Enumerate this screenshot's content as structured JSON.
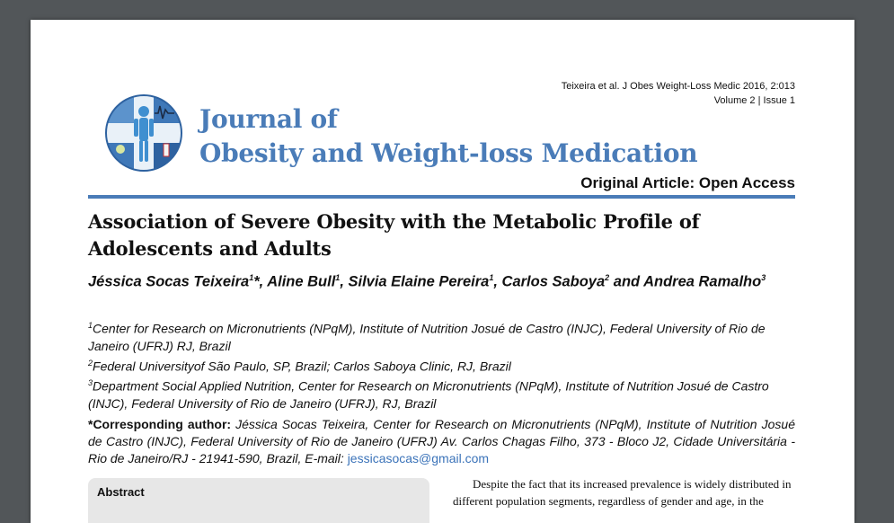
{
  "header": {
    "citation": "Teixeira et al. J Obes Weight-Loss Medic 2016, 2:013",
    "volume_issue": "Volume 2 | Issue 1"
  },
  "journal": {
    "title_line1": "Journal of",
    "title_line2": "Obesity and Weight-loss Medication"
  },
  "article_type": "Original Article: Open Access",
  "article": {
    "title": "Association of Severe Obesity with the Metabolic Profile of Adolescents and Adults",
    "authors": [
      {
        "name": "Jéssica Socas Teixeira",
        "sup": "1",
        "sep": "*, "
      },
      {
        "name": "Aline Bull",
        "sup": "1",
        "sep": ", "
      },
      {
        "name": "Silvia Elaine Pereira",
        "sup": "1",
        "sep": ", "
      },
      {
        "name": "Carlos Saboya",
        "sup": "2",
        "sep": " and "
      },
      {
        "name": "Andrea Ramalho",
        "sup": "3",
        "sep": ""
      }
    ],
    "affiliations": [
      {
        "sup": "1",
        "text": "Center for Research on Micronutrients (NPqM), Institute of Nutrition Josué de Castro (INJC), Federal University of Rio de Janeiro (UFRJ) RJ, Brazil"
      },
      {
        "sup": "2",
        "text": "Federal Universityof São Paulo, SP, Brazil; Carlos Saboya Clinic, RJ, Brazil"
      },
      {
        "sup": "3",
        "text": "Department Social Applied Nutrition, Center for Research on Micronutrients (NPqM), Institute of Nutrition Josué de Castro (INJC), Federal University of Rio de Janeiro (UFRJ), RJ, Brazil"
      }
    ],
    "corresponding": {
      "label": "*Corresponding author:",
      "text": " Jéssica Socas Teixeira, Center for Research on Micronutrients (NPqM), Institute of Nutrition Josué de Castro (INJC), Federal University of Rio de Janeiro (UFRJ) Av. Carlos Chagas Filho, 373 - Bloco J2, Cidade Universitária - Rio de Janeiro/RJ - 21941-590, Brazil, E-mail: ",
      "email": "jessicasocas@gmail.com"
    }
  },
  "abstract": {
    "label": "Abstract"
  },
  "body": {
    "paragraph": "Despite the fact that its increased prevalence is widely distributed in different population segments, regardless of gender and age, in the"
  },
  "colors": {
    "accent": "#4a7cb8",
    "link": "#3b73b9",
    "viewer_bg": "#525659"
  }
}
